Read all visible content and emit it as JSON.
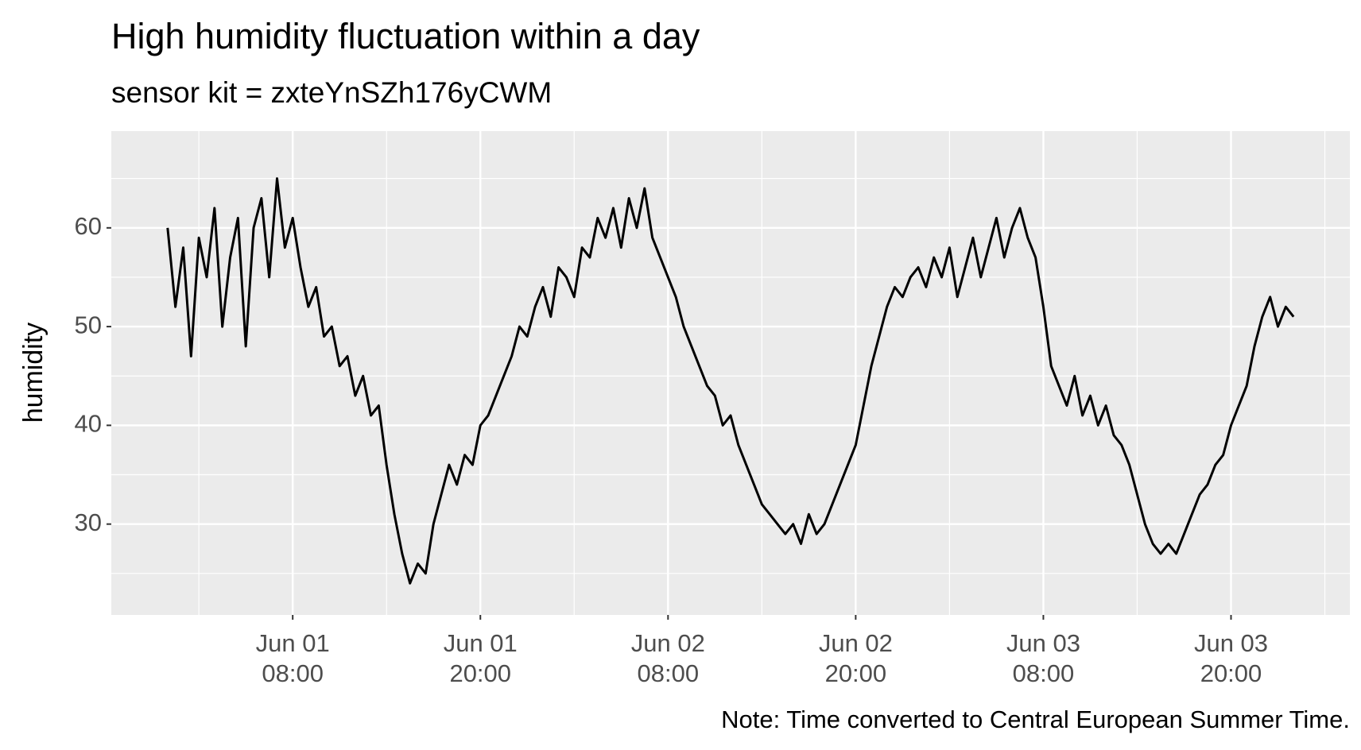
{
  "chart_data": {
    "type": "line",
    "title": "High humidity fluctuation within a day",
    "subtitle": "sensor kit = zxteYnSZh176yCWM",
    "y_label": "humidity",
    "caption": "Note: Time converted to Central European Summer Time.",
    "x": [
      "Jun 01 00:00",
      "Jun 01 00:30",
      "Jun 01 01:00",
      "Jun 01 01:30",
      "Jun 01 02:00",
      "Jun 01 02:30",
      "Jun 01 03:00",
      "Jun 01 03:30",
      "Jun 01 04:00",
      "Jun 01 04:30",
      "Jun 01 05:00",
      "Jun 01 05:30",
      "Jun 01 06:00",
      "Jun 01 06:30",
      "Jun 01 07:00",
      "Jun 01 07:30",
      "Jun 01 08:00",
      "Jun 01 08:30",
      "Jun 01 09:00",
      "Jun 01 09:30",
      "Jun 01 10:00",
      "Jun 01 10:30",
      "Jun 01 11:00",
      "Jun 01 11:30",
      "Jun 01 12:00",
      "Jun 01 12:30",
      "Jun 01 13:00",
      "Jun 01 13:30",
      "Jun 01 14:00",
      "Jun 01 14:30",
      "Jun 01 15:00",
      "Jun 01 15:30",
      "Jun 01 16:00",
      "Jun 01 16:30",
      "Jun 01 17:00",
      "Jun 01 17:30",
      "Jun 01 18:00",
      "Jun 01 18:30",
      "Jun 01 19:00",
      "Jun 01 19:30",
      "Jun 01 20:00",
      "Jun 01 20:30",
      "Jun 01 21:00",
      "Jun 01 21:30",
      "Jun 01 22:00",
      "Jun 01 22:30",
      "Jun 01 23:00",
      "Jun 01 23:30",
      "Jun 02 00:00",
      "Jun 02 00:30",
      "Jun 02 01:00",
      "Jun 02 01:30",
      "Jun 02 02:00",
      "Jun 02 02:30",
      "Jun 02 03:00",
      "Jun 02 03:30",
      "Jun 02 04:00",
      "Jun 02 04:30",
      "Jun 02 05:00",
      "Jun 02 05:30",
      "Jun 02 06:00",
      "Jun 02 06:30",
      "Jun 02 07:00",
      "Jun 02 07:30",
      "Jun 02 08:00",
      "Jun 02 08:30",
      "Jun 02 09:00",
      "Jun 02 09:30",
      "Jun 02 10:00",
      "Jun 02 10:30",
      "Jun 02 11:00",
      "Jun 02 11:30",
      "Jun 02 12:00",
      "Jun 02 12:30",
      "Jun 02 13:00",
      "Jun 02 13:30",
      "Jun 02 14:00",
      "Jun 02 14:30",
      "Jun 02 15:00",
      "Jun 02 15:30",
      "Jun 02 16:00",
      "Jun 02 16:30",
      "Jun 02 17:00",
      "Jun 02 17:30",
      "Jun 02 18:00",
      "Jun 02 18:30",
      "Jun 02 19:00",
      "Jun 02 19:30",
      "Jun 02 20:00",
      "Jun 02 20:30",
      "Jun 02 21:00",
      "Jun 02 21:30",
      "Jun 02 22:00",
      "Jun 02 22:30",
      "Jun 02 23:00",
      "Jun 02 23:30",
      "Jun 03 00:00",
      "Jun 03 00:30",
      "Jun 03 01:00",
      "Jun 03 01:30",
      "Jun 03 02:00",
      "Jun 03 02:30",
      "Jun 03 03:00",
      "Jun 03 03:30",
      "Jun 03 04:00",
      "Jun 03 04:30",
      "Jun 03 05:00",
      "Jun 03 05:30",
      "Jun 03 06:00",
      "Jun 03 06:30",
      "Jun 03 07:00",
      "Jun 03 07:30",
      "Jun 03 08:00",
      "Jun 03 08:30",
      "Jun 03 09:00",
      "Jun 03 09:30",
      "Jun 03 10:00",
      "Jun 03 10:30",
      "Jun 03 11:00",
      "Jun 03 11:30",
      "Jun 03 12:00",
      "Jun 03 12:30",
      "Jun 03 13:00",
      "Jun 03 13:30",
      "Jun 03 14:00",
      "Jun 03 14:30",
      "Jun 03 15:00",
      "Jun 03 15:30",
      "Jun 03 16:00",
      "Jun 03 16:30",
      "Jun 03 17:00",
      "Jun 03 17:30",
      "Jun 03 18:00",
      "Jun 03 18:30",
      "Jun 03 19:00",
      "Jun 03 19:30",
      "Jun 03 20:00",
      "Jun 03 20:30",
      "Jun 03 21:00",
      "Jun 03 21:30",
      "Jun 03 22:00",
      "Jun 03 22:30",
      "Jun 03 23:00",
      "Jun 03 23:30",
      "Jun 04 00:00"
    ],
    "values": [
      60,
      52,
      58,
      47,
      59,
      55,
      62,
      50,
      57,
      61,
      48,
      60,
      63,
      55,
      65,
      58,
      61,
      56,
      52,
      54,
      49,
      50,
      46,
      47,
      43,
      45,
      41,
      42,
      36,
      31,
      27,
      24,
      26,
      25,
      30,
      33,
      36,
      34,
      37,
      36,
      40,
      41,
      43,
      45,
      47,
      50,
      49,
      52,
      54,
      51,
      56,
      55,
      53,
      58,
      57,
      61,
      59,
      62,
      58,
      63,
      60,
      64,
      59,
      57,
      55,
      53,
      50,
      48,
      46,
      44,
      43,
      40,
      41,
      38,
      36,
      34,
      32,
      31,
      30,
      29,
      30,
      28,
      31,
      29,
      30,
      32,
      34,
      36,
      38,
      42,
      46,
      49,
      52,
      54,
      53,
      55,
      56,
      54,
      57,
      55,
      58,
      53,
      56,
      59,
      55,
      58,
      61,
      57,
      60,
      62,
      59,
      57,
      52,
      46,
      44,
      42,
      45,
      41,
      43,
      40,
      42,
      39,
      38,
      36,
      33,
      30,
      28,
      27,
      28,
      27,
      29,
      31,
      33,
      34,
      36,
      37,
      40,
      42,
      44,
      48,
      51,
      53,
      50,
      52,
      51
    ],
    "color": "#000000",
    "xlim": [
      "May 31 20:24",
      "Jun 04 03:36"
    ],
    "xticks": [
      "Jun 01 08:00",
      "Jun 01 20:00",
      "Jun 02 08:00",
      "Jun 02 20:00",
      "Jun 03 08:00",
      "Jun 03 20:00"
    ],
    "ylim": [
      20.8,
      69.8
    ],
    "yticks": [
      30,
      40,
      50,
      60
    ],
    "grid": true
  }
}
